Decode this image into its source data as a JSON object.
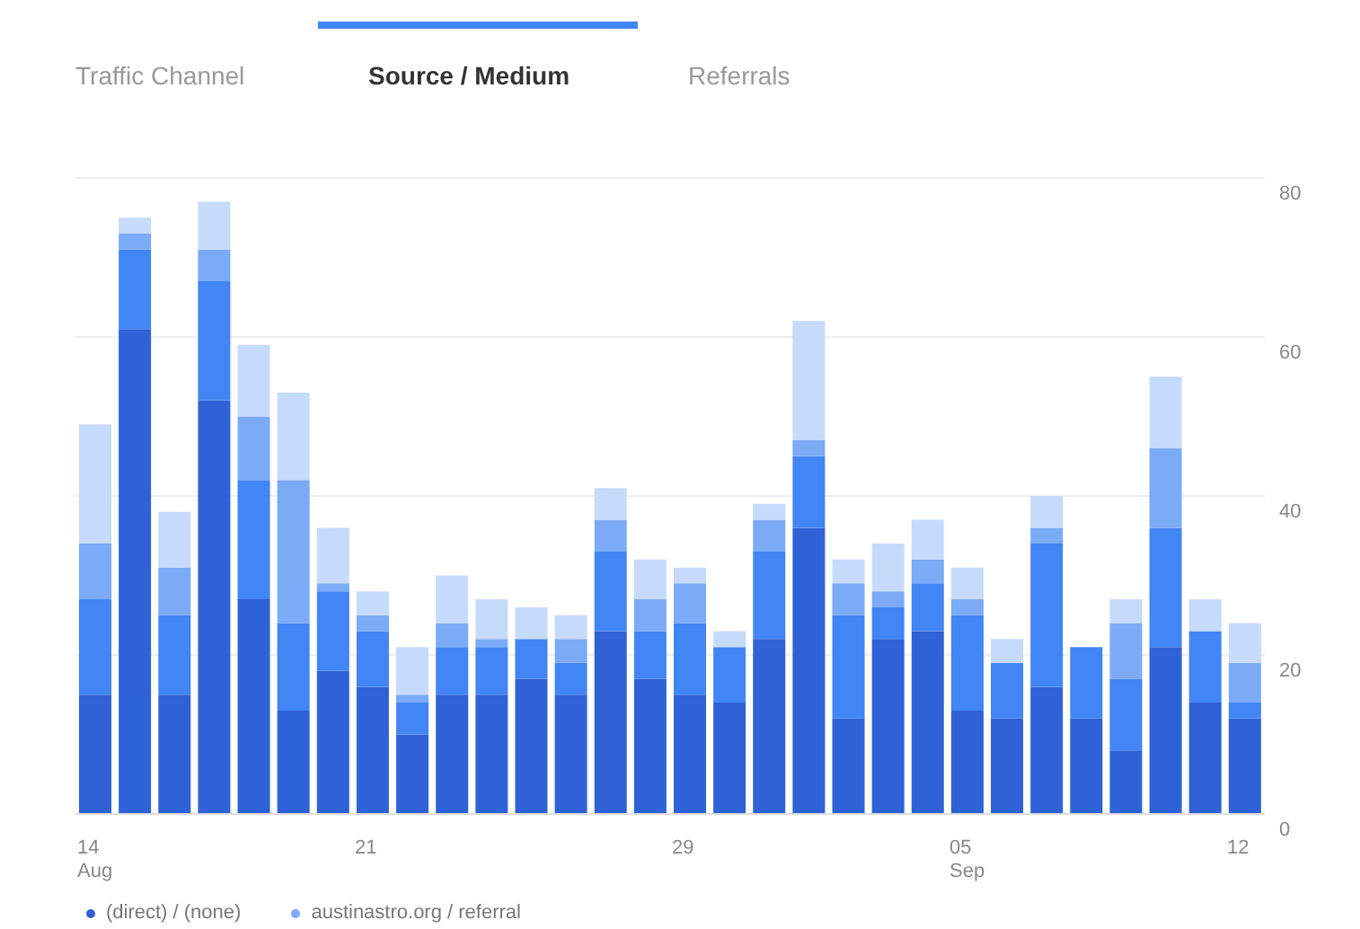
{
  "chart_data": {
    "type": "bar",
    "stacked": true,
    "annotations": [
      "Traffic Channel",
      "Source / Medium",
      "Referrals"
    ],
    "categories": [
      "14\nAug",
      null,
      null,
      null,
      null,
      null,
      null,
      "21",
      null,
      null,
      null,
      null,
      null,
      null,
      null,
      "29",
      null,
      null,
      null,
      null,
      null,
      null,
      "05\nSep",
      null,
      null,
      null,
      null,
      null,
      null,
      "12"
    ],
    "series": [
      {
        "name": "(direct) / (none)",
        "color": "#2f62d6",
        "values": [
          15,
          61,
          15,
          52,
          27,
          13,
          18,
          16,
          10,
          15,
          15,
          17,
          15,
          23,
          17,
          15,
          14,
          22,
          36,
          12,
          22,
          23,
          13,
          12,
          16,
          12,
          8,
          21,
          14,
          12
        ]
      },
      {
        "color": "#4285f4",
        "values": [
          12,
          10,
          10,
          15,
          15,
          11,
          10,
          7,
          4,
          6,
          6,
          5,
          4,
          10,
          6,
          9,
          7,
          11,
          9,
          13,
          4,
          6,
          12,
          7,
          18,
          9,
          9,
          15,
          9,
          2
        ]
      },
      {
        "name": "austinastro.org / referral",
        "color": "#7baaf7",
        "values": [
          7,
          2,
          6,
          4,
          8,
          18,
          1,
          2,
          1,
          3,
          1,
          0,
          3,
          4,
          4,
          5,
          0,
          4,
          2,
          4,
          2,
          3,
          2,
          0,
          2,
          0,
          7,
          10,
          0,
          5
        ]
      },
      {
        "color": "#c6dafc",
        "values": [
          15,
          2,
          7,
          6,
          9,
          11,
          7,
          3,
          6,
          6,
          5,
          4,
          3,
          4,
          5,
          2,
          2,
          2,
          15,
          3,
          6,
          5,
          4,
          3,
          4,
          0,
          3,
          9,
          4,
          5
        ]
      }
    ],
    "ylim": [
      0,
      80
    ],
    "yticks": [
      0,
      20,
      40,
      60,
      80
    ],
    "grid": "y",
    "legend": "bottom"
  }
}
